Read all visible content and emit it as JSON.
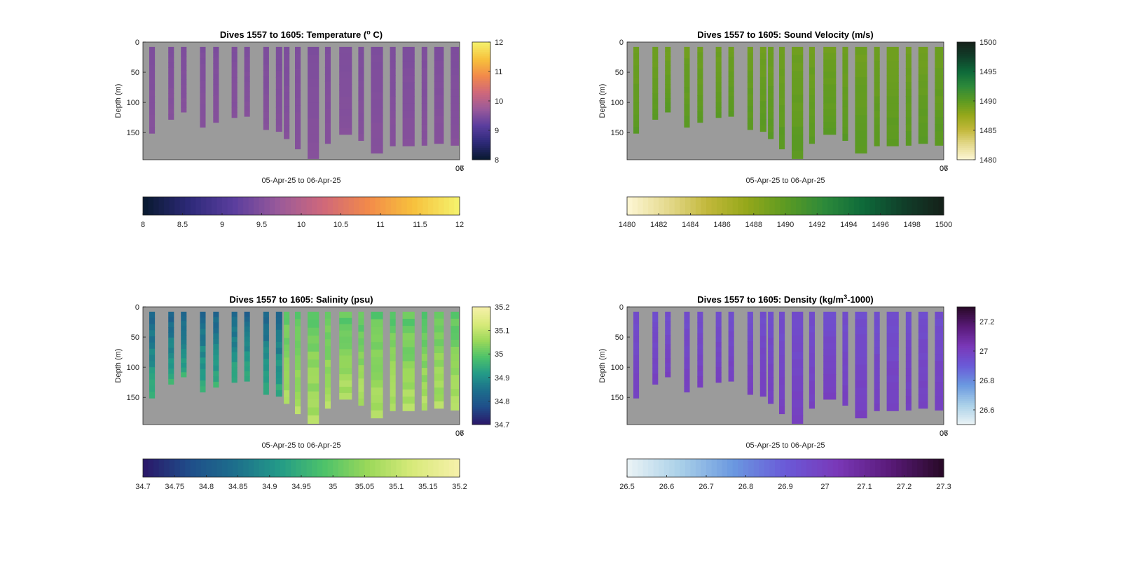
{
  "xlabel": "05-Apr-25 to 06-Apr-25",
  "ylabel": "Depth (m)",
  "xtick_overlap": [
    "06",
    "07"
  ],
  "chart_data": [
    {
      "type": "heatmap",
      "title_pre": "Dives 1557 to 1605: Temperature (",
      "title_sup": "o",
      "title_post": " C)",
      "xlabel": "05-Apr-25 to 06-Apr-25",
      "ylabel": "Depth (m)",
      "yticks": [
        0,
        50,
        100,
        150
      ],
      "ylim": [
        0,
        195
      ],
      "colorbar_right_ticks": [
        8,
        9,
        10,
        11,
        12
      ],
      "colorbar_bottom_ticks": [
        "8",
        "8.5",
        "9",
        "9.5",
        "10",
        "10.5",
        "11",
        "11.5",
        "12"
      ],
      "clim": [
        8,
        12
      ],
      "colormap": [
        "#0a1a33",
        "#2e2a7a",
        "#5b3e9e",
        "#9a5a9a",
        "#d0687a",
        "#f28a4a",
        "#f7c03c",
        "#f5f06a"
      ],
      "value_samples": [
        9.45,
        9.55,
        9.6
      ]
    },
    {
      "type": "heatmap",
      "title_pre": "Dives 1557 to 1605: Sound Velocity (m/s)",
      "title_sup": "",
      "title_post": "",
      "xlabel": "05-Apr-25 to 06-Apr-25",
      "ylabel": "Depth (m)",
      "yticks": [
        0,
        50,
        100,
        150
      ],
      "ylim": [
        0,
        195
      ],
      "colorbar_right_ticks": [
        1480,
        1485,
        1490,
        1495,
        1500
      ],
      "colorbar_bottom_ticks": [
        "1480",
        "1482",
        "1484",
        "1486",
        "1488",
        "1490",
        "1492",
        "1494",
        "1496",
        "1498",
        "1500"
      ],
      "clim": [
        1480,
        1500
      ],
      "colormap": [
        "#fcf5d0",
        "#e4d98c",
        "#c2b83a",
        "#95a81a",
        "#5c9a22",
        "#2d8a3a",
        "#0e6a3a",
        "#10402a",
        "#15221a"
      ],
      "value_samples": [
        1489.2,
        1490.0,
        1491.0
      ]
    },
    {
      "type": "heatmap",
      "title_pre": "Dives 1557 to 1605: Salinity (psu)",
      "title_sup": "",
      "title_post": "",
      "xlabel": "05-Apr-25 to 06-Apr-25",
      "ylabel": "Depth (m)",
      "yticks": [
        0,
        50,
        100,
        150
      ],
      "ylim": [
        0,
        195
      ],
      "colorbar_right_ticks": [
        34.7,
        34.8,
        34.9,
        35,
        35.1,
        35.2
      ],
      "colorbar_bottom_ticks": [
        "34.7",
        "34.75",
        "34.8",
        "34.85",
        "34.9",
        "34.95",
        "35",
        "35.05",
        "35.1",
        "35.15",
        "35.2"
      ],
      "clim": [
        34.7,
        35.2
      ],
      "colormap": [
        "#2a1a6a",
        "#1f4e8a",
        "#1d6e8c",
        "#239a88",
        "#4cc26a",
        "#9bd85a",
        "#d8ea7a",
        "#f5f0a8"
      ],
      "value_samples": [
        34.82,
        34.95,
        35.08
      ]
    },
    {
      "type": "heatmap",
      "title_pre": "Dives 1557 to 1605: Density (kg/m",
      "title_sup": "3",
      "title_post": "-1000)",
      "xlabel": "05-Apr-25 to 06-Apr-25",
      "ylabel": "Depth (m)",
      "yticks": [
        0,
        50,
        100,
        150
      ],
      "ylim": [
        0,
        195
      ],
      "colorbar_right_ticks": [
        26.6,
        26.8,
        27,
        27.2
      ],
      "colorbar_bottom_ticks": [
        "26.5",
        "26.6",
        "26.7",
        "26.8",
        "26.9",
        "27",
        "27.1",
        "27.2",
        "27.3"
      ],
      "clim": [
        26.5,
        27.3
      ],
      "colormap": [
        "#e8f2f5",
        "#a8cfe8",
        "#6a98e0",
        "#6a5ad8",
        "#7a38b8",
        "#5a1a7a",
        "#2a0a2a"
      ],
      "value_samples": [
        26.95,
        27.0,
        27.05
      ]
    }
  ],
  "dives": [
    {
      "t": 0.02,
      "w": 0.018,
      "d": 151
    },
    {
      "t": 0.08,
      "w": 0.018,
      "d": 128
    },
    {
      "t": 0.12,
      "w": 0.018,
      "d": 116
    },
    {
      "t": 0.18,
      "w": 0.018,
      "d": 141
    },
    {
      "t": 0.222,
      "w": 0.018,
      "d": 133
    },
    {
      "t": 0.28,
      "w": 0.018,
      "d": 125
    },
    {
      "t": 0.32,
      "w": 0.018,
      "d": 123
    },
    {
      "t": 0.38,
      "w": 0.018,
      "d": 145
    },
    {
      "t": 0.42,
      "w": 0.02,
      "d": 148
    },
    {
      "t": 0.445,
      "w": 0.018,
      "d": 160
    },
    {
      "t": 0.48,
      "w": 0.018,
      "d": 177
    },
    {
      "t": 0.52,
      "w": 0.036,
      "d": 193
    },
    {
      "t": 0.575,
      "w": 0.018,
      "d": 168
    },
    {
      "t": 0.62,
      "w": 0.04,
      "d": 153
    },
    {
      "t": 0.68,
      "w": 0.018,
      "d": 163
    },
    {
      "t": 0.72,
      "w": 0.038,
      "d": 184
    },
    {
      "t": 0.78,
      "w": 0.018,
      "d": 172
    },
    {
      "t": 0.82,
      "w": 0.038,
      "d": 172
    },
    {
      "t": 0.88,
      "w": 0.018,
      "d": 171
    },
    {
      "t": 0.92,
      "w": 0.03,
      "d": 168
    },
    {
      "t": 0.972,
      "w": 0.026,
      "d": 171
    }
  ]
}
